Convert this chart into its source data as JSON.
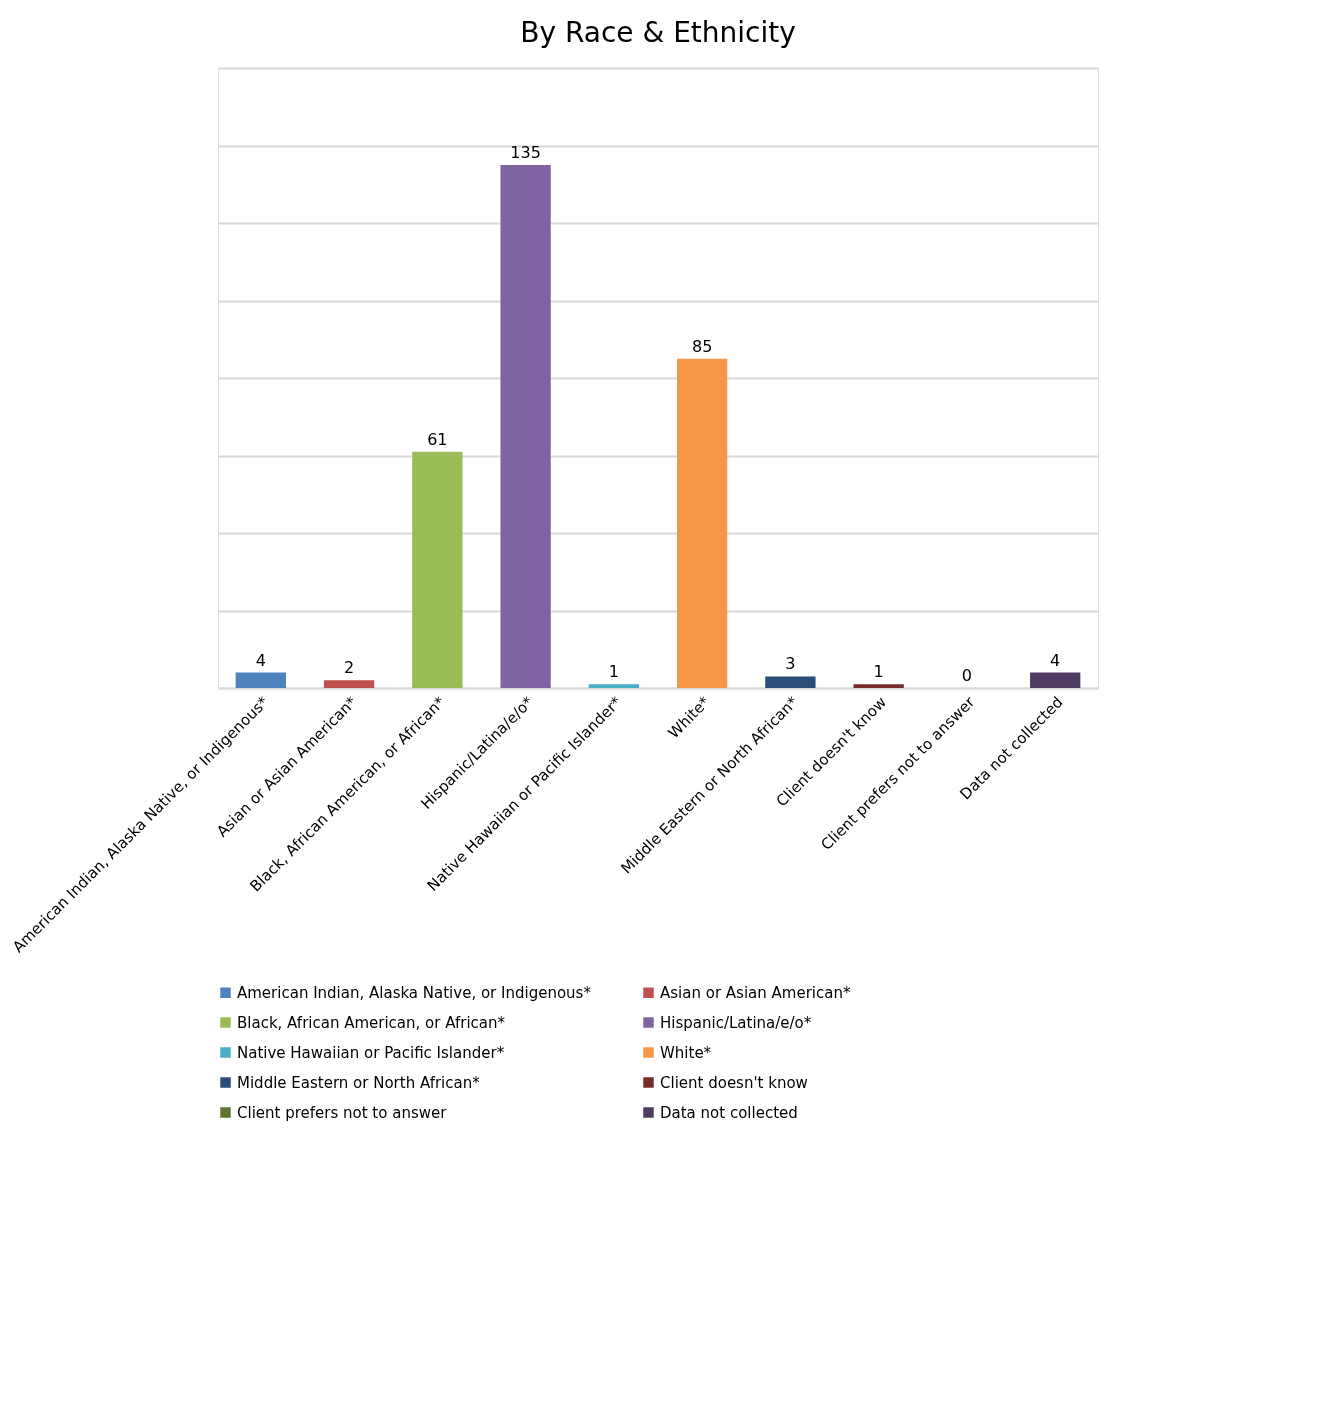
{
  "chart_data": {
    "type": "bar",
    "title": "By Race & Ethnicity",
    "categories": [
      "American Indian, Alaska Native, or Indigenous*",
      "Asian or Asian American*",
      "Black, African American, or African*",
      "Hispanic/Latina/e/o*",
      "Native Hawaiian or Pacific Islander*",
      "White*",
      "Middle Eastern or North African*",
      "Client doesn't know",
      "Client prefers not to answer",
      "Data not collected"
    ],
    "series": [
      {
        "name": "American Indian, Alaska Native, or Indigenous*",
        "color": "#4f81bd",
        "values": [
          4,
          null,
          null,
          null,
          null,
          null,
          null,
          null,
          null,
          null
        ]
      },
      {
        "name": "Asian or Asian American*",
        "color": "#c0504d",
        "values": [
          null,
          2,
          null,
          null,
          null,
          null,
          null,
          null,
          null,
          null
        ]
      },
      {
        "name": "Black, African American, or African*",
        "color": "#9bbb59",
        "values": [
          null,
          null,
          61,
          null,
          null,
          null,
          null,
          null,
          null,
          null
        ]
      },
      {
        "name": "Hispanic/Latina/e/o*",
        "color": "#8064a2",
        "values": [
          null,
          null,
          null,
          135,
          null,
          null,
          null,
          null,
          null,
          null
        ]
      },
      {
        "name": "Native Hawaiian or Pacific Islander*",
        "color": "#4bacc6",
        "values": [
          null,
          null,
          null,
          null,
          1,
          null,
          null,
          null,
          null,
          null
        ]
      },
      {
        "name": "White*",
        "color": "#f79646",
        "values": [
          null,
          null,
          null,
          null,
          null,
          85,
          null,
          null,
          null,
          null
        ]
      },
      {
        "name": "Middle Eastern or North African*",
        "color": "#2c4d75",
        "values": [
          null,
          null,
          null,
          null,
          null,
          null,
          3,
          null,
          null,
          null
        ]
      },
      {
        "name": "Client doesn't know",
        "color": "#772c2a",
        "values": [
          null,
          null,
          null,
          null,
          null,
          null,
          null,
          1,
          null,
          null
        ]
      },
      {
        "name": "Client prefers not to answer",
        "color": "#5f7530",
        "values": [
          null,
          null,
          null,
          null,
          null,
          null,
          null,
          null,
          0,
          null
        ]
      },
      {
        "name": "Data not collected",
        "color": "#4d3b62",
        "values": [
          null,
          null,
          null,
          null,
          null,
          null,
          null,
          null,
          null,
          4
        ]
      }
    ],
    "stacked": true,
    "ylim": [
      0,
      160
    ],
    "yticks": [
      {
        "value": 0,
        "label": null
      },
      {
        "value": 20,
        "label": null
      },
      {
        "value": 40,
        "label": null
      },
      {
        "value": 60,
        "label": null
      },
      {
        "value": 80,
        "label": null
      },
      {
        "value": 100,
        "label": null
      },
      {
        "value": 120,
        "label": null
      },
      {
        "value": 140,
        "label": null
      },
      {
        "value": 160,
        "label": null
      }
    ],
    "tick_labels": "x",
    "grid": "y",
    "data_labels": true,
    "legend": "bottom"
  }
}
